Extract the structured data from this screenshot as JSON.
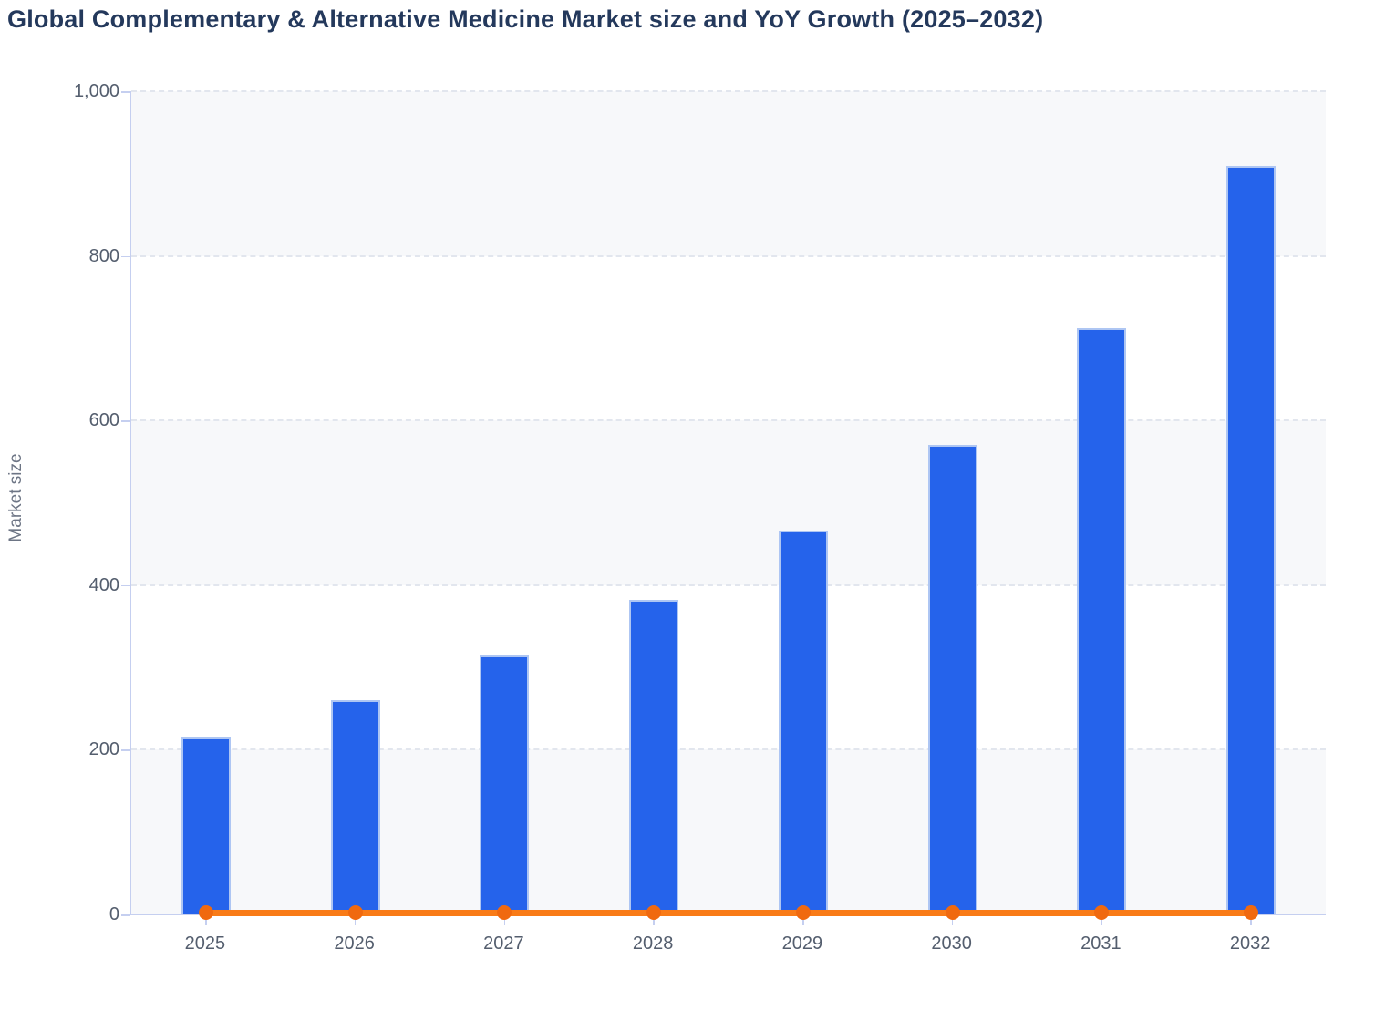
{
  "title": "Global Complementary & Alternative Medicine Market size and YoY Growth (2025–2032)",
  "chart_data": {
    "type": "bar",
    "combo_line_overlay": true,
    "title": "Global Complementary & Alternative Medicine Market size and YoY Growth (2025–2032)",
    "categories": [
      "2025",
      "2026",
      "2027",
      "2028",
      "2029",
      "2030",
      "2031",
      "2032"
    ],
    "series": [
      {
        "name": "Market size",
        "type": "bar",
        "values": [
          215,
          260,
          315,
          382,
          466,
          570,
          712,
          909
        ]
      },
      {
        "name": "YoY Growth",
        "type": "line",
        "values": [
          0,
          0,
          0,
          0,
          0,
          0,
          0,
          0
        ]
      }
    ],
    "xlabel": "",
    "ylabel": "Market size",
    "ylim": [
      0,
      1000
    ],
    "ytick_values": [
      0,
      200,
      400,
      600,
      800,
      1000
    ],
    "ytick_labels": [
      "0",
      "200",
      "400",
      "600",
      "800",
      "1,000"
    ],
    "grid": "horizontal dashed gridlines with alternating background bands",
    "legend_position": "none"
  },
  "colors": {
    "title_text": "#24395c",
    "axis_text": "#545e6e",
    "y_axis_title_text": "#6d7585",
    "bar_fill": "#2563eb",
    "bar_border": "#aec6f3",
    "line": "#f97b17",
    "marker": "#f0690f",
    "axis_line": "#c5cff0",
    "gridline": "#e2e6ee",
    "band_gray": "#f7f8fa",
    "band_white": "#ffffff",
    "background": "#ffffff"
  }
}
